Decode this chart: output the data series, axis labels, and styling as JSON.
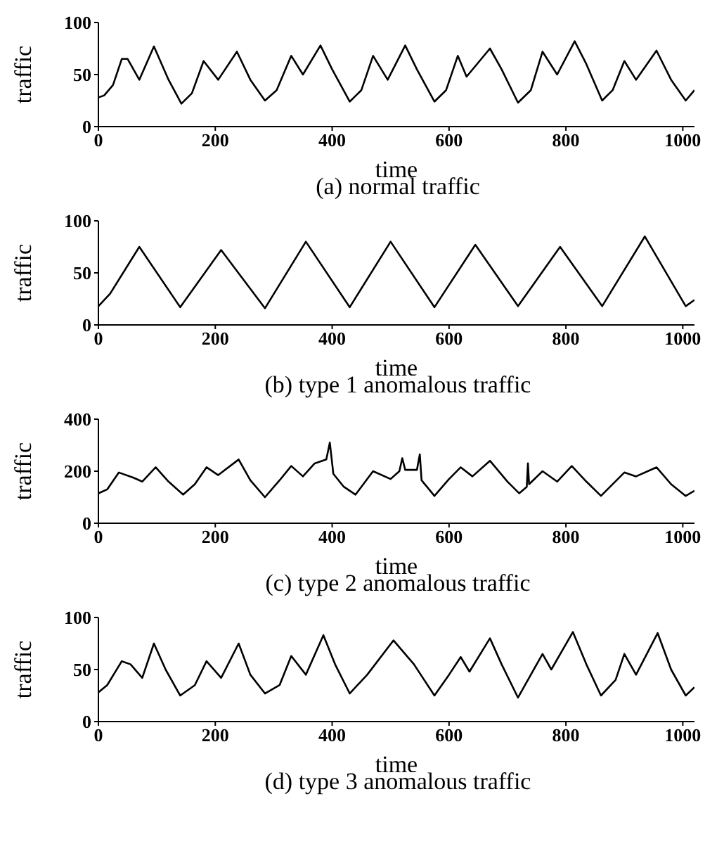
{
  "chart_data": [
    {
      "type": "line",
      "title": "(a) normal traffic",
      "xlabel": "time",
      "ylabel": "traffic",
      "xlim": [
        0,
        1020
      ],
      "xticks": [
        0,
        200,
        400,
        600,
        800,
        1000
      ],
      "ylim": [
        0,
        100
      ],
      "yticks": [
        0,
        50,
        100
      ],
      "grid": false,
      "legend": false,
      "series": [
        {
          "color": "#000000",
          "x": [
            0,
            10,
            25,
            40,
            50,
            70,
            95,
            120,
            142,
            160,
            180,
            205,
            237,
            260,
            285,
            305,
            330,
            350,
            380,
            400,
            430,
            450,
            470,
            495,
            525,
            545,
            575,
            595,
            615,
            630,
            670,
            690,
            718,
            740,
            760,
            785,
            815,
            835,
            862,
            880,
            900,
            920,
            955,
            980,
            1005,
            1020
          ],
          "values": [
            28,
            30,
            40,
            65,
            65,
            45,
            77,
            45,
            22,
            32,
            63,
            45,
            72,
            45,
            25,
            35,
            68,
            50,
            78,
            55,
            24,
            35,
            68,
            45,
            78,
            55,
            24,
            35,
            68,
            48,
            75,
            55,
            23,
            35,
            72,
            50,
            82,
            60,
            25,
            35,
            63,
            45,
            73,
            45,
            25,
            35
          ]
        }
      ]
    },
    {
      "type": "line",
      "title": "(b) type 1 anomalous traffic",
      "xlabel": "time",
      "ylabel": "traffic",
      "xlim": [
        0,
        1020
      ],
      "xticks": [
        0,
        200,
        400,
        600,
        800,
        1000
      ],
      "ylim": [
        0,
        100
      ],
      "yticks": [
        0,
        50,
        100
      ],
      "grid": false,
      "legend": false,
      "series": [
        {
          "color": "#000000",
          "x": [
            0,
            20,
            70,
            140,
            210,
            285,
            355,
            430,
            500,
            575,
            645,
            718,
            790,
            862,
            935,
            1005,
            1020
          ],
          "values": [
            18,
            30,
            75,
            17,
            72,
            16,
            80,
            17,
            80,
            17,
            77,
            18,
            75,
            18,
            85,
            18,
            24
          ]
        }
      ]
    },
    {
      "type": "line",
      "title": "(c) type 2 anomalous traffic",
      "xlabel": "time",
      "ylabel": "traffic",
      "xlim": [
        0,
        1020
      ],
      "xticks": [
        0,
        200,
        400,
        600,
        800,
        1000
      ],
      "ylim": [
        0,
        400
      ],
      "yticks": [
        0,
        200,
        400
      ],
      "grid": false,
      "legend": false,
      "series": [
        {
          "color": "#000000",
          "x": [
            0,
            15,
            35,
            60,
            75,
            98,
            120,
            145,
            165,
            185,
            205,
            240,
            260,
            285,
            310,
            330,
            350,
            370,
            390,
            396,
            402,
            420,
            440,
            470,
            500,
            515,
            520,
            525,
            545,
            550,
            553,
            575,
            600,
            620,
            640,
            670,
            700,
            720,
            733,
            735,
            737,
            760,
            785,
            810,
            835,
            860,
            900,
            920,
            955,
            980,
            1005,
            1020
          ],
          "values": [
            115,
            130,
            195,
            175,
            160,
            215,
            160,
            110,
            150,
            215,
            185,
            245,
            165,
            100,
            165,
            220,
            180,
            230,
            245,
            310,
            190,
            140,
            110,
            200,
            170,
            200,
            250,
            205,
            205,
            265,
            165,
            105,
            170,
            215,
            180,
            240,
            160,
            115,
            140,
            230,
            150,
            200,
            160,
            220,
            160,
            105,
            195,
            180,
            215,
            150,
            105,
            125
          ]
        }
      ]
    },
    {
      "type": "line",
      "title": "(d) type 3 anomalous traffic",
      "xlabel": "time",
      "ylabel": "traffic",
      "xlim": [
        0,
        1020
      ],
      "xticks": [
        0,
        200,
        400,
        600,
        800,
        1000
      ],
      "ylim": [
        0,
        100
      ],
      "yticks": [
        0,
        50,
        100
      ],
      "grid": false,
      "legend": false,
      "series": [
        {
          "color": "#000000",
          "x": [
            0,
            15,
            40,
            55,
            75,
            95,
            115,
            140,
            165,
            185,
            210,
            240,
            260,
            285,
            310,
            330,
            355,
            385,
            405,
            430,
            460,
            505,
            540,
            575,
            600,
            620,
            635,
            670,
            690,
            718,
            740,
            760,
            775,
            812,
            835,
            860,
            885,
            900,
            920,
            957,
            980,
            1005,
            1020
          ],
          "values": [
            28,
            35,
            58,
            55,
            42,
            75,
            50,
            25,
            35,
            58,
            42,
            75,
            45,
            27,
            35,
            63,
            45,
            83,
            55,
            27,
            45,
            78,
            55,
            25,
            45,
            62,
            48,
            80,
            55,
            23,
            45,
            65,
            50,
            86,
            55,
            25,
            40,
            65,
            45,
            85,
            50,
            25,
            33
          ]
        }
      ]
    }
  ]
}
